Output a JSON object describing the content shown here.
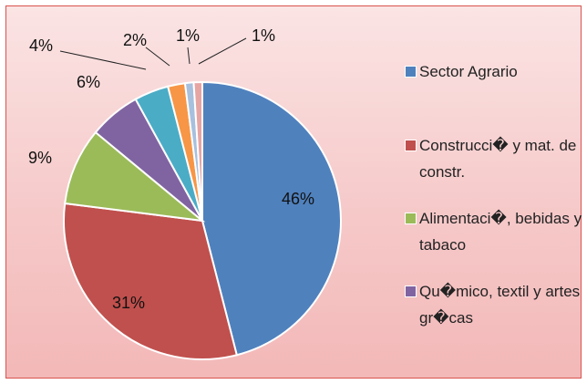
{
  "chart_data": {
    "type": "pie",
    "categories": [
      "Sector Agrario",
      "Construcci�  y mat. de constr.",
      "Alimentaci�, bebidas y tabaco",
      "Qu�mico,  textil y artes gr�cas",
      null,
      null,
      null,
      null
    ],
    "values": [
      46,
      31,
      9,
      6,
      4,
      2,
      1,
      1
    ],
    "value_labels": [
      "46%",
      "31%",
      "9%",
      "6%",
      "4%",
      "2%",
      "1%",
      "1%"
    ],
    "colors": [
      "#4f81bd",
      "#c0504d",
      "#9bbb59",
      "#8064a2",
      "#4bacc6",
      "#f79646",
      "#a7c0de",
      "#e6a5a3"
    ]
  }
}
